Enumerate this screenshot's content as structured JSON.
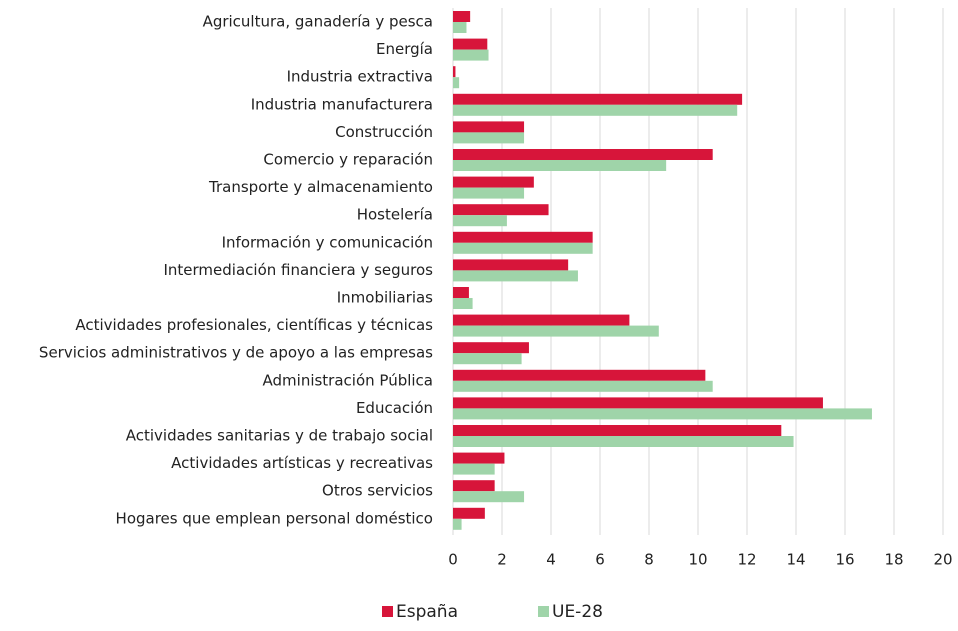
{
  "chart_data": {
    "type": "bar",
    "orientation": "horizontal",
    "categories": [
      "Agricultura, ganadería y pesca",
      "Energía",
      "Industria extractiva",
      "Industria manufacturera",
      "Construcción",
      "Comercio y reparación",
      "Transporte y almacenamiento",
      "Hostelería",
      "Información y comunicación",
      "Intermediación financiera y seguros",
      "Inmobiliarias",
      "Actividades profesionales, científicas y técnicas",
      "Servicios administrativos y de apoyo a las empresas",
      "Administración Pública",
      "Educación",
      "Actividades sanitarias y de trabajo social",
      "Actividades artísticas y recreativas",
      "Otros servicios",
      "Hogares que emplean personal doméstico"
    ],
    "series": [
      {
        "name": "España",
        "color": "#d7153a",
        "values": [
          0.7,
          1.4,
          0.1,
          11.8,
          2.9,
          10.6,
          3.3,
          3.9,
          5.7,
          4.7,
          0.65,
          7.2,
          3.1,
          10.3,
          15.1,
          13.4,
          2.1,
          1.7,
          1.3
        ]
      },
      {
        "name": "UE-28",
        "color": "#9fd4a9",
        "values": [
          0.55,
          1.45,
          0.25,
          11.6,
          2.9,
          8.7,
          2.9,
          2.2,
          5.7,
          5.1,
          0.8,
          8.4,
          2.8,
          10.6,
          17.1,
          13.9,
          1.7,
          2.9,
          0.35
        ]
      }
    ],
    "xlim": [
      0,
      20
    ],
    "xticks": [
      0,
      2,
      4,
      6,
      8,
      10,
      12,
      14,
      16,
      18,
      20
    ],
    "grid": true,
    "legend": "bottom"
  }
}
